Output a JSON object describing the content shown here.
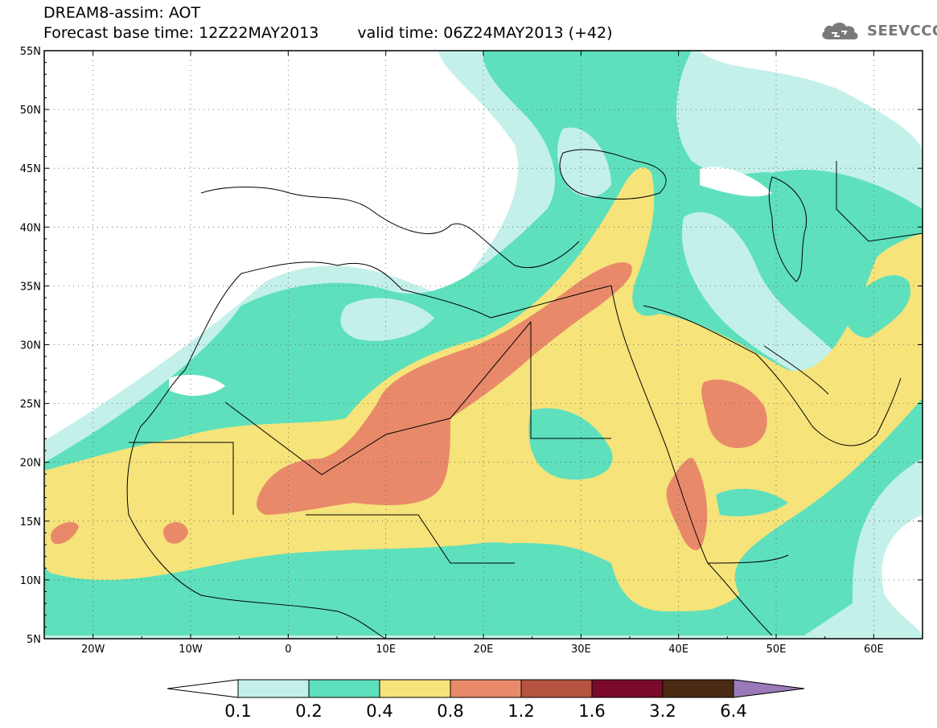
{
  "header": {
    "line1": "DREAM8-assim: AOT",
    "base_time": "Forecast base time: 12Z22MAY2013",
    "valid_time": "valid time: 06Z24MAY2013 (+42)"
  },
  "logo": {
    "text": "SEEVCCC",
    "icon": "cloud-icon"
  },
  "map": {
    "lat_labels": [
      "55N",
      "50N",
      "45N",
      "40N",
      "35N",
      "30N",
      "25N",
      "20N",
      "15N",
      "10N",
      "5N"
    ],
    "lon_labels": [
      "20W",
      "10W",
      "0",
      "10E",
      "20E",
      "30E",
      "40E",
      "50E",
      "60E"
    ],
    "grid": "dotted"
  },
  "colorbar": {
    "colors": [
      "#ffffff",
      "#c4f0ea",
      "#5ee0bc",
      "#f6e37a",
      "#e88a6a",
      "#b55440",
      "#7a0a2a",
      "#4a2a12",
      "#9a7ab8"
    ],
    "labels": [
      "0.1",
      "0.2",
      "0.4",
      "0.8",
      "1.2",
      "1.6",
      "3.2",
      "6.4"
    ]
  }
}
